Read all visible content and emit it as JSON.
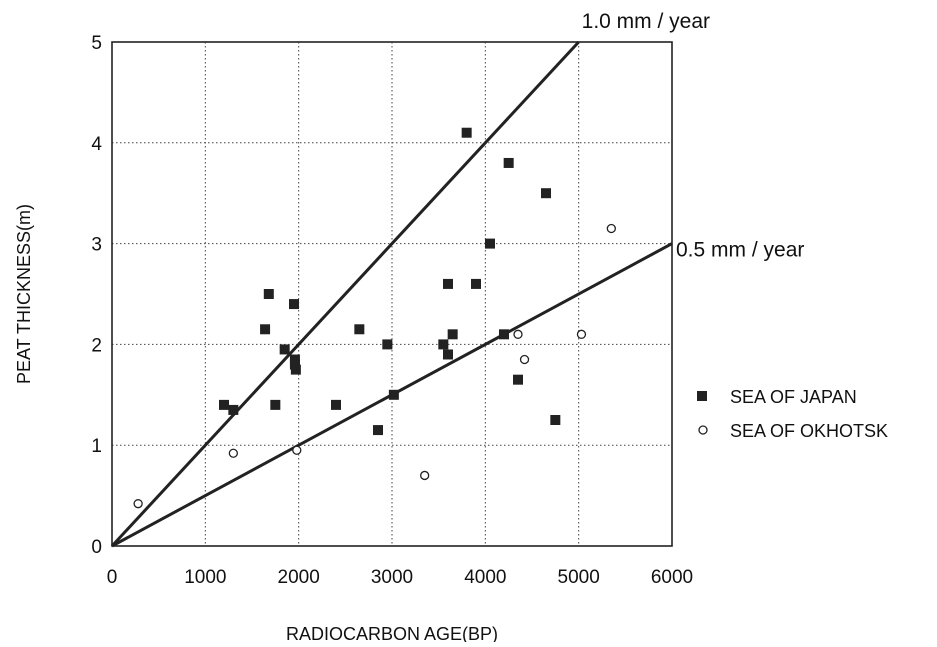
{
  "chart_data": {
    "type": "scatter",
    "title": "",
    "xlabel": "RADIOCARBON AGE(BP)",
    "ylabel": "PEAT THICKNESS(m)",
    "xlim": [
      0,
      6000
    ],
    "ylim": [
      0,
      5
    ],
    "x_ticks": [
      "0",
      "1000",
      "2000",
      "3000",
      "4000",
      "5000",
      "6000"
    ],
    "y_ticks": [
      "0",
      "1",
      "2",
      "3",
      "4",
      "5"
    ],
    "grid": "dotted",
    "legend_position": "right",
    "series": [
      {
        "name": "SEA OF JAPAN",
        "marker": "filled-square",
        "color": "#222222",
        "points": [
          [
            1200,
            1.4
          ],
          [
            1300,
            1.35
          ],
          [
            1640,
            2.15
          ],
          [
            1680,
            2.5
          ],
          [
            1750,
            1.4
          ],
          [
            1850,
            1.95
          ],
          [
            1950,
            2.4
          ],
          [
            1960,
            1.85
          ],
          [
            1960,
            1.8
          ],
          [
            1970,
            1.75
          ],
          [
            2400,
            1.4
          ],
          [
            2650,
            2.15
          ],
          [
            2850,
            1.15
          ],
          [
            2950,
            2.0
          ],
          [
            3020,
            1.5
          ],
          [
            3550,
            2.0
          ],
          [
            3600,
            2.6
          ],
          [
            3600,
            1.9
          ],
          [
            3650,
            2.1
          ],
          [
            3800,
            4.1
          ],
          [
            3900,
            2.6
          ],
          [
            4050,
            3.0
          ],
          [
            4200,
            2.1
          ],
          [
            4250,
            3.8
          ],
          [
            4350,
            1.65
          ],
          [
            4650,
            3.5
          ],
          [
            4750,
            1.25
          ]
        ]
      },
      {
        "name": "SEA OF OKHOTSK",
        "marker": "open-circle",
        "color": "#222222",
        "points": [
          [
            280,
            0.42
          ],
          [
            1300,
            0.92
          ],
          [
            1980,
            0.95
          ],
          [
            3350,
            0.7
          ],
          [
            4350,
            2.1
          ],
          [
            4420,
            1.85
          ],
          [
            5030,
            2.1
          ],
          [
            5350,
            3.15
          ]
        ]
      }
    ],
    "reference_lines": [
      {
        "label": "1.0 mm / year",
        "slope_mm_per_year": 1.0,
        "from": [
          0,
          0
        ],
        "to": [
          5000,
          5
        ]
      },
      {
        "label": "0.5 mm / year",
        "slope_mm_per_year": 0.5,
        "from": [
          0,
          0
        ],
        "to": [
          6000,
          3
        ]
      }
    ]
  }
}
